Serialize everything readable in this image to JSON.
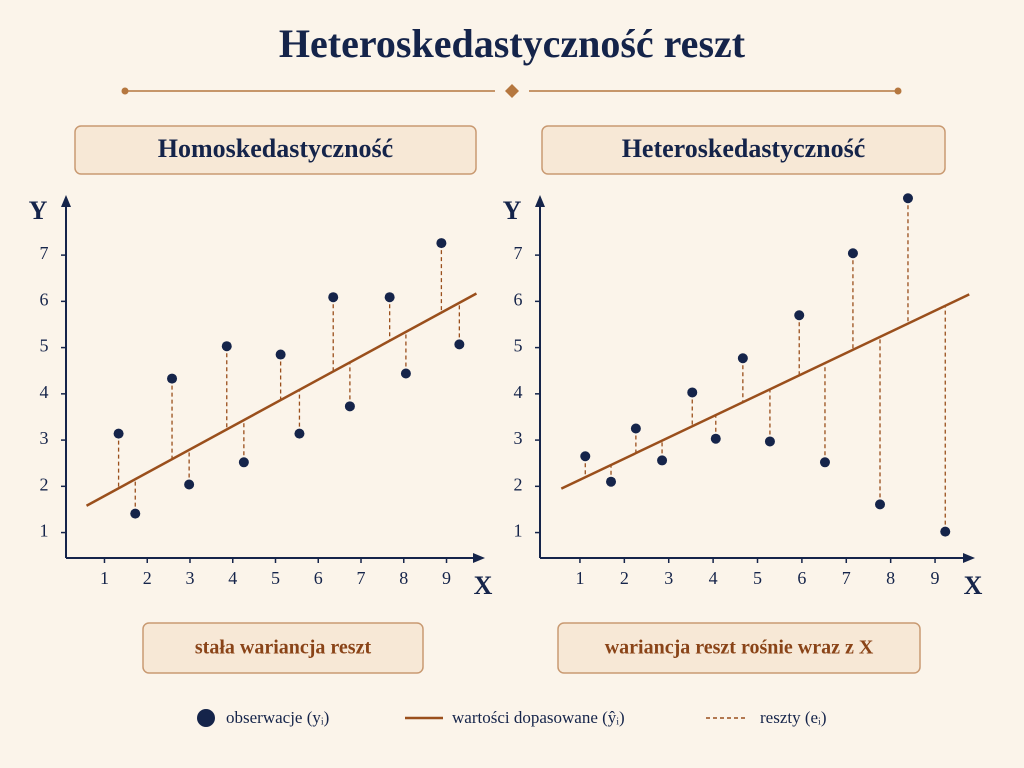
{
  "title": "Heteroskedastyczność reszt",
  "legend": [
    "obserwacje (yᵢ)",
    "wartości dopasowane (ŷᵢ)",
    "reszty (eᵢ)"
  ],
  "chart_data": [
    {
      "type": "scatter",
      "title": "Homoskedastyczność",
      "caption": "stała wariancja reszt",
      "x_label": "X",
      "y_label": "Y",
      "point_color": "#15244a",
      "fit_color": "#9a4f1c",
      "x": [
        1.33,
        1.72,
        2.58,
        2.98,
        3.86,
        4.26,
        5.12,
        5.56,
        6.35,
        6.74,
        7.67,
        8.05,
        8.88,
        9.3
      ],
      "y": [
        3.14,
        1.41,
        4.33,
        2.04,
        5.03,
        2.52,
        4.85,
        3.14,
        6.09,
        3.73,
        6.09,
        4.44,
        7.26,
        5.07
      ],
      "fit": {
        "x": [
          0.58,
          9.7
        ],
        "y": [
          1.58,
          6.17
        ]
      },
      "xlim": [
        0.1,
        9.9
      ],
      "ylim": [
        0.45,
        8.3
      ],
      "xticks": [
        1,
        2,
        3,
        4,
        5,
        6,
        7,
        8,
        9
      ],
      "yticks": [
        1,
        2,
        3,
        4,
        5,
        6,
        7
      ]
    },
    {
      "type": "scatter",
      "title": "Heteroskedastyczność",
      "caption": "wariancja reszt rośnie wraz z X",
      "x_label": "X",
      "y_label": "Y",
      "point_color": "#15244a",
      "fit_color": "#9a4f1c",
      "x": [
        1.12,
        1.7,
        2.26,
        2.85,
        3.53,
        4.06,
        4.67,
        5.28,
        5.94,
        6.52,
        7.15,
        7.76,
        8.39,
        9.23
      ],
      "y": [
        2.65,
        2.1,
        3.25,
        2.56,
        4.03,
        3.03,
        4.77,
        2.97,
        5.7,
        2.52,
        7.04,
        1.61,
        8.23,
        1.02
      ],
      "fit": {
        "x": [
          0.58,
          9.77
        ],
        "y": [
          1.95,
          6.15
        ]
      },
      "xlim": [
        0.1,
        9.9
      ],
      "ylim": [
        0.45,
        8.3
      ],
      "xticks": [
        1,
        2,
        3,
        4,
        5,
        6,
        7,
        8,
        9
      ],
      "yticks": [
        1,
        2,
        3,
        4,
        5,
        6,
        7
      ]
    }
  ]
}
